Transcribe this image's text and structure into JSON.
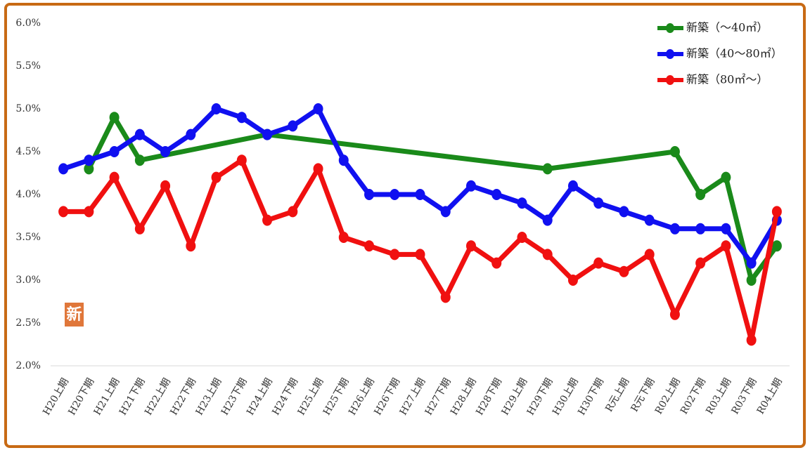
{
  "chart_data": {
    "type": "line",
    "categories": [
      "H20上期",
      "H20下期",
      "H21上期",
      "H21下期",
      "H22上期",
      "H22下期",
      "H23上期",
      "H23下期",
      "H24上期",
      "H24下期",
      "H25上期",
      "H25下期",
      "H26上期",
      "H26下期",
      "H27上期",
      "H27下期",
      "H28上期",
      "H28下期",
      "H29上期",
      "H29下期",
      "H30上期",
      "H30下期",
      "R元上期",
      "R元下期",
      "R02上期",
      "R02下期",
      "R03上期",
      "R03下期",
      "R04上期"
    ],
    "series": [
      {
        "name": "新築（～40㎡）",
        "color": "#1a8a1a",
        "values": [
          null,
          4.3,
          4.9,
          4.4,
          null,
          null,
          null,
          null,
          4.7,
          null,
          null,
          null,
          null,
          null,
          null,
          null,
          null,
          null,
          null,
          4.3,
          null,
          null,
          null,
          null,
          4.5,
          4.0,
          4.2,
          3.0,
          3.4
        ]
      },
      {
        "name": "新築（40～80㎡）",
        "color": "#1010f0",
        "values": [
          4.3,
          4.4,
          4.5,
          4.7,
          4.5,
          4.7,
          5.0,
          4.9,
          4.7,
          4.8,
          5.0,
          4.4,
          4.0,
          4.0,
          4.0,
          3.8,
          4.1,
          4.0,
          3.9,
          3.7,
          4.1,
          3.9,
          3.8,
          3.7,
          3.6,
          3.6,
          3.6,
          3.2,
          3.7
        ]
      },
      {
        "name": "新築（80㎡～）",
        "color": "#f01010",
        "values": [
          3.8,
          3.8,
          4.2,
          3.6,
          4.1,
          3.4,
          4.2,
          4.4,
          3.7,
          3.8,
          4.3,
          3.5,
          3.4,
          3.3,
          3.3,
          2.8,
          3.4,
          3.2,
          3.5,
          3.3,
          3.0,
          3.2,
          3.1,
          3.3,
          2.6,
          3.2,
          3.4,
          2.3,
          3.8
        ]
      }
    ],
    "connect_gaps": true,
    "ylim": [
      2.0,
      6.0
    ],
    "yticks": [
      {
        "value": 2.0,
        "label": "2.0%"
      },
      {
        "value": 2.5,
        "label": "2.5%"
      },
      {
        "value": 3.0,
        "label": "3.0%"
      },
      {
        "value": 3.5,
        "label": "3.5%"
      },
      {
        "value": 4.0,
        "label": "4.0%"
      },
      {
        "value": 4.5,
        "label": "4.5%"
      },
      {
        "value": 5.0,
        "label": "5.0%"
      },
      {
        "value": 5.5,
        "label": "5.5%"
      },
      {
        "value": 6.0,
        "label": "6.0%"
      }
    ],
    "legend": "upper right",
    "badge": "新"
  }
}
